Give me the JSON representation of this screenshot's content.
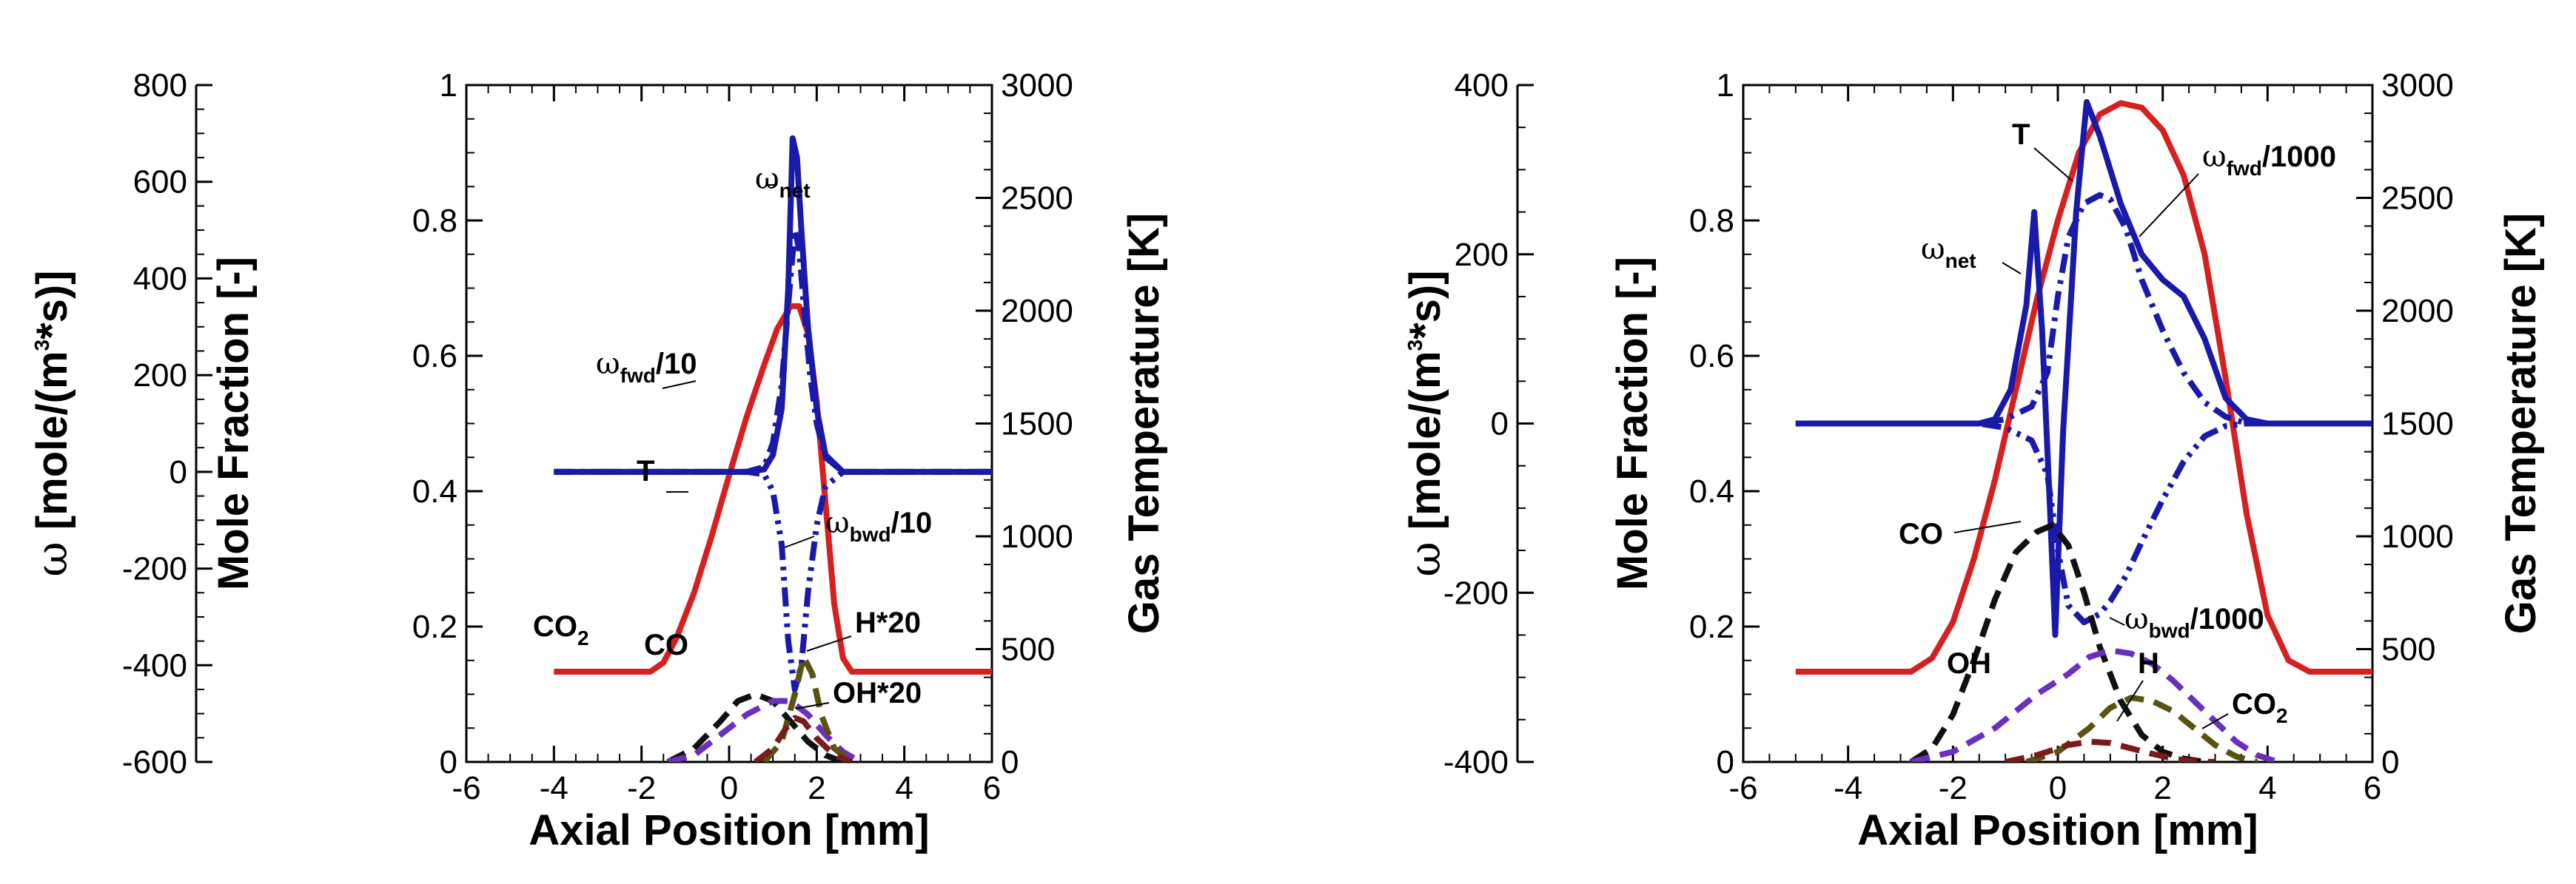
{
  "chart_data": [
    {
      "type": "line",
      "x_axis": {
        "label": "Axial Position [mm]",
        "lim": [
          -6,
          6
        ],
        "ticks": [
          -6,
          -4,
          -2,
          0,
          2,
          4,
          6
        ]
      },
      "y_axes": {
        "omega": {
          "label_symbol": "ω",
          "label_text": " [mole/(m",
          "label_sup": "3",
          "label_end": "*s)]",
          "lim": [
            -600,
            800
          ],
          "ticks": [
            -600,
            -400,
            -200,
            0,
            200,
            400,
            600,
            800
          ]
        },
        "mole_fraction": {
          "label": "Mole Fraction [-]",
          "lim": [
            0,
            1
          ],
          "ticks": [
            0,
            0.2,
            0.4,
            0.6,
            0.8,
            1
          ]
        },
        "temperature": {
          "label": "Gas Temperature [K]",
          "lim": [
            0,
            3000
          ],
          "ticks": [
            0,
            500,
            1000,
            1500,
            2000,
            2500,
            3000
          ]
        }
      },
      "series": [
        {
          "key": "T",
          "axis": "temperature",
          "color": "#d62020",
          "dash": "solid",
          "x": [
            -4,
            -1.8,
            -1.5,
            -1.2,
            -0.8,
            -0.4,
            0,
            0.4,
            0.8,
            1.1,
            1.4,
            1.6,
            1.8,
            2.0,
            2.2,
            2.4,
            2.6,
            2.8,
            6
          ],
          "y": [
            400,
            400,
            440,
            550,
            750,
            1000,
            1270,
            1530,
            1760,
            1920,
            2020,
            2020,
            1900,
            1600,
            1150,
            700,
            460,
            400,
            400
          ]
        },
        {
          "key": "omega_net",
          "axis": "omega",
          "color": "#1a1aaa",
          "dash": "solid",
          "x": [
            -4,
            0.4,
            0.8,
            1.0,
            1.2,
            1.35,
            1.45,
            1.55,
            1.65,
            1.8,
            2.0,
            2.2,
            2.6,
            6
          ],
          "y": [
            0,
            0,
            5,
            35,
            130,
            380,
            690,
            650,
            500,
            300,
            130,
            35,
            0,
            0
          ]
        },
        {
          "key": "omega_fwd",
          "axis": "omega",
          "color": "#1a1aaa",
          "dash": "dashdot",
          "x": [
            -4,
            0.4,
            0.8,
            1.0,
            1.2,
            1.4,
            1.5,
            1.6,
            1.7,
            1.85,
            2.0,
            2.2,
            2.6,
            6
          ],
          "y": [
            0,
            0,
            10,
            60,
            180,
            400,
            500,
            460,
            350,
            200,
            100,
            30,
            0,
            0
          ]
        },
        {
          "key": "omega_bwd",
          "axis": "omega",
          "color": "#1a1aaa",
          "dash": "dashdotdot",
          "x": [
            -4,
            0.4,
            0.8,
            1.0,
            1.2,
            1.35,
            1.5,
            1.65,
            1.8,
            2.0,
            2.2,
            2.6,
            6
          ],
          "y": [
            0,
            0,
            -5,
            -40,
            -150,
            -350,
            -450,
            -400,
            -250,
            -110,
            -30,
            0,
            0
          ]
        },
        {
          "key": "CO2",
          "axis": "mole_fraction",
          "color": "#111111",
          "dash": "dashed",
          "x": [
            -1.4,
            -0.8,
            -0.2,
            0.2,
            0.6,
            1.0,
            1.4,
            1.8,
            2.2,
            2.6
          ],
          "y": [
            0,
            0.02,
            0.06,
            0.09,
            0.1,
            0.09,
            0.06,
            0.03,
            0.01,
            0
          ]
        },
        {
          "key": "CO",
          "axis": "mole_fraction",
          "color": "#6a2fbf",
          "dash": "dashed",
          "x": [
            -1.4,
            -0.8,
            -0.2,
            0.4,
            1.0,
            1.4,
            1.8,
            2.2,
            2.6,
            3.0
          ],
          "y": [
            0,
            0.01,
            0.04,
            0.07,
            0.09,
            0.09,
            0.07,
            0.04,
            0.015,
            0
          ]
        },
        {
          "key": "H",
          "axis": "mole_fraction",
          "color": "#5a5210",
          "dash": "dashed",
          "x": [
            0.8,
            1.2,
            1.5,
            1.7,
            1.9,
            2.1,
            2.4,
            2.8
          ],
          "y": [
            0,
            0.03,
            0.1,
            0.155,
            0.13,
            0.07,
            0.02,
            0
          ]
        },
        {
          "key": "OH",
          "axis": "mole_fraction",
          "color": "#7a1a1a",
          "dash": "dashed",
          "x": [
            0.6,
            1.0,
            1.3,
            1.5,
            1.7,
            2.0,
            2.4,
            2.8
          ],
          "y": [
            0,
            0.02,
            0.05,
            0.065,
            0.06,
            0.035,
            0.01,
            0
          ]
        }
      ],
      "annotations": [
        {
          "id": "T",
          "text": "T"
        },
        {
          "id": "omega_net",
          "sym": "ω",
          "sub": "net",
          "suffix": ""
        },
        {
          "id": "omega_fwd",
          "sym": "ω",
          "sub": "fwd",
          "suffix": "/10"
        },
        {
          "id": "omega_bwd",
          "sym": "ω",
          "sub": "bwd",
          "suffix": "/10"
        },
        {
          "id": "CO2",
          "text": "CO",
          "sub": "2"
        },
        {
          "id": "CO",
          "text": "CO"
        },
        {
          "id": "H",
          "text": "H*20"
        },
        {
          "id": "OH",
          "text": "OH*20"
        }
      ]
    },
    {
      "type": "line",
      "x_axis": {
        "label": "Axial Position [mm]",
        "lim": [
          -6,
          6
        ],
        "ticks": [
          -6,
          -4,
          -2,
          0,
          2,
          4,
          6
        ]
      },
      "y_axes": {
        "omega": {
          "label_symbol": "ω",
          "label_text": " [mole/(m",
          "label_sup": "3",
          "label_end": "*s)]",
          "lim": [
            -400,
            400
          ],
          "ticks": [
            -400,
            -200,
            0,
            200,
            400
          ]
        },
        "mole_fraction": {
          "label": "Mole Fraction [-]",
          "lim": [
            0,
            1
          ],
          "ticks": [
            0,
            0.2,
            0.4,
            0.6,
            0.8,
            1
          ]
        },
        "temperature": {
          "label": "Gas Temperature [K]",
          "lim": [
            0,
            3000
          ],
          "ticks": [
            0,
            500,
            1000,
            1500,
            2000,
            2500,
            3000
          ]
        }
      },
      "series": [
        {
          "key": "T",
          "axis": "temperature",
          "color": "#d62020",
          "dash": "solid",
          "x": [
            -5,
            -2.8,
            -2.4,
            -2.0,
            -1.6,
            -1.2,
            -0.8,
            -0.4,
            0,
            0.4,
            0.8,
            1.2,
            1.6,
            2.0,
            2.4,
            2.8,
            3.2,
            3.6,
            4.0,
            4.4,
            4.8,
            6
          ],
          "y": [
            400,
            400,
            460,
            620,
            900,
            1250,
            1650,
            2050,
            2400,
            2700,
            2870,
            2920,
            2900,
            2800,
            2600,
            2250,
            1700,
            1100,
            650,
            450,
            400,
            400
          ]
        },
        {
          "key": "omega_net",
          "axis": "omega",
          "color": "#1a1aaa",
          "dash": "solid",
          "x": [
            -5,
            -1.5,
            -1.2,
            -0.9,
            -0.6,
            -0.45,
            -0.3,
            -0.15,
            -0.05,
            0.1,
            0.35,
            0.55,
            0.8,
            1.2,
            1.6,
            2.0,
            2.4,
            2.8,
            3.2,
            3.6,
            4.0,
            6
          ],
          "y": [
            0,
            0,
            5,
            40,
            140,
            250,
            110,
            -100,
            -250,
            -10,
            250,
            380,
            340,
            260,
            200,
            170,
            150,
            100,
            30,
            5,
            0,
            0
          ]
        },
        {
          "key": "omega_fwd",
          "axis": "omega",
          "color": "#1a1aaa",
          "dash": "dashdot",
          "x": [
            -5,
            -1.5,
            -1.0,
            -0.5,
            -0.2,
            0.0,
            0.2,
            0.5,
            0.8,
            1.0,
            1.3,
            1.6,
            2.0,
            2.4,
            2.8,
            3.2,
            3.6,
            6
          ],
          "y": [
            0,
            0,
            5,
            20,
            60,
            150,
            220,
            260,
            270,
            265,
            230,
            170,
            110,
            60,
            25,
            8,
            0,
            0
          ]
        },
        {
          "key": "omega_bwd",
          "axis": "omega",
          "color": "#1a1aaa",
          "dash": "dashdotdot",
          "x": [
            -5,
            -1.5,
            -1.0,
            -0.5,
            -0.2,
            0.0,
            0.2,
            0.5,
            0.8,
            1.0,
            1.3,
            1.6,
            2.0,
            2.4,
            2.8,
            3.2,
            3.6,
            6
          ],
          "y": [
            0,
            0,
            -5,
            -20,
            -60,
            -150,
            -215,
            -235,
            -225,
            -210,
            -180,
            -140,
            -90,
            -45,
            -15,
            -3,
            0,
            0
          ]
        },
        {
          "key": "CO",
          "axis": "mole_fraction",
          "color": "#111111",
          "dash": "dashed",
          "x": [
            -2.8,
            -2.4,
            -2.0,
            -1.6,
            -1.2,
            -0.8,
            -0.4,
            -0.1,
            0.2,
            0.5,
            0.8,
            1.2,
            1.6,
            2.0,
            2.4,
            2.8
          ],
          "y": [
            0,
            0.02,
            0.07,
            0.15,
            0.24,
            0.31,
            0.34,
            0.35,
            0.32,
            0.25,
            0.17,
            0.09,
            0.04,
            0.015,
            0.005,
            0
          ]
        },
        {
          "key": "CO2",
          "axis": "mole_fraction",
          "color": "#6a2fbf",
          "dash": "dashed",
          "x": [
            -2.8,
            -2.0,
            -1.2,
            -0.4,
            0.2,
            0.6,
            1.0,
            1.4,
            1.8,
            2.2,
            2.6,
            3.0,
            3.4,
            3.8,
            4.2
          ],
          "y": [
            0,
            0.015,
            0.05,
            0.1,
            0.13,
            0.155,
            0.165,
            0.16,
            0.145,
            0.12,
            0.09,
            0.06,
            0.03,
            0.01,
            0
          ]
        },
        {
          "key": "H",
          "axis": "mole_fraction",
          "color": "#5a5210",
          "dash": "dashed",
          "x": [
            -0.6,
            0.0,
            0.6,
            1.0,
            1.4,
            1.8,
            2.2,
            2.6,
            3.0,
            3.4,
            3.8
          ],
          "y": [
            0,
            0.015,
            0.05,
            0.08,
            0.095,
            0.09,
            0.075,
            0.05,
            0.025,
            0.008,
            0
          ]
        },
        {
          "key": "OH",
          "axis": "mole_fraction",
          "color": "#7a1a1a",
          "dash": "dashed",
          "x": [
            -1.0,
            -0.4,
            0.2,
            0.6,
            1.0,
            1.4,
            1.8,
            2.2,
            2.6,
            3.0
          ],
          "y": [
            0,
            0.01,
            0.025,
            0.03,
            0.028,
            0.02,
            0.012,
            0.005,
            0.001,
            0
          ]
        }
      ],
      "annotations": [
        {
          "id": "T",
          "text": "T"
        },
        {
          "id": "omega_net",
          "sym": "ω",
          "sub": "net",
          "suffix": ""
        },
        {
          "id": "omega_fwd",
          "sym": "ω",
          "sub": "fwd",
          "suffix": "/1000"
        },
        {
          "id": "omega_bwd",
          "sym": "ω",
          "sub": "bwd",
          "suffix": "/1000"
        },
        {
          "id": "CO",
          "text": "CO"
        },
        {
          "id": "OH",
          "text": "OH"
        },
        {
          "id": "H",
          "text": "H"
        },
        {
          "id": "CO2",
          "text": "CO",
          "sub": "2"
        }
      ]
    }
  ]
}
